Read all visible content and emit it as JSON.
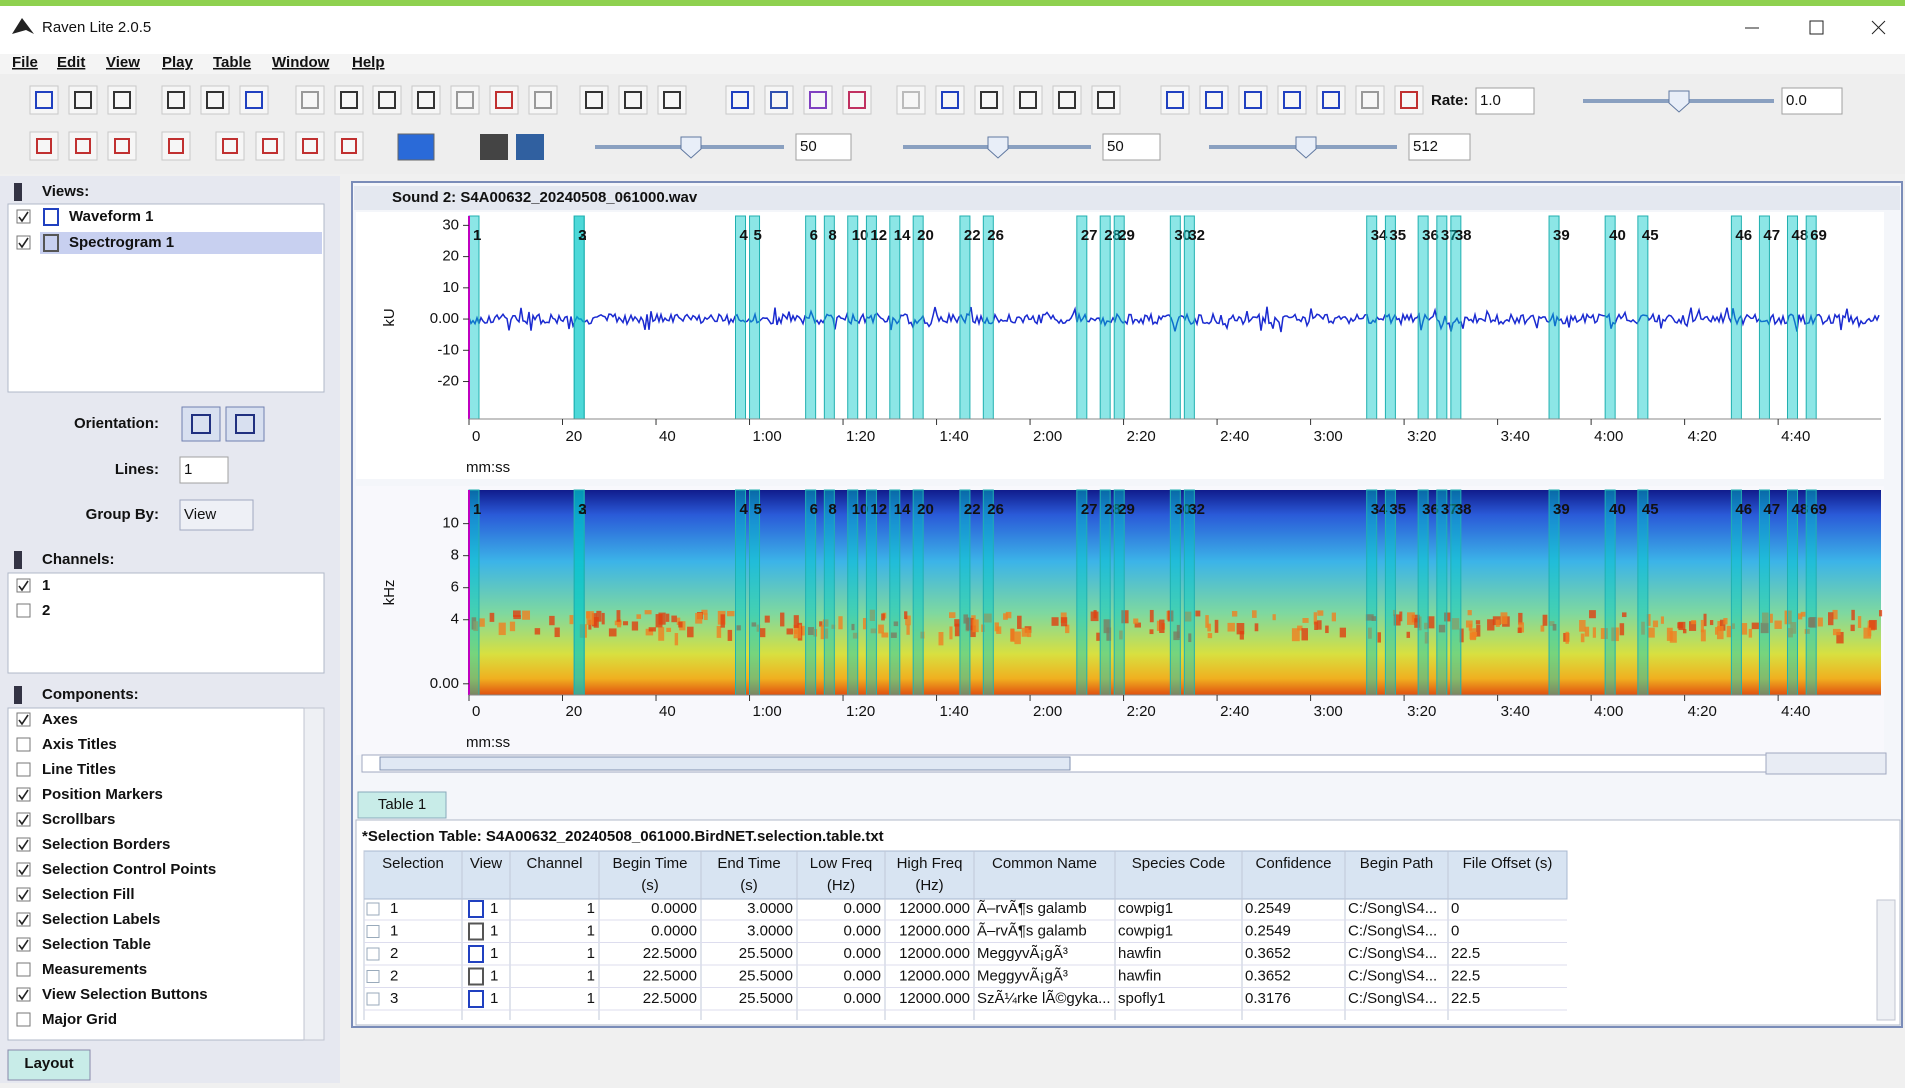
{
  "window": {
    "title": "Raven Lite 2.0.5"
  },
  "menu": [
    "File",
    "Edit",
    "View",
    "Play",
    "Table",
    "Window",
    "Help"
  ],
  "toolbar": {
    "rate_label": "Rate:",
    "rate": "1.0",
    "volume": "0.0",
    "brightness": "50",
    "contrast": "50",
    "window_size": "512"
  },
  "views": {
    "title": "Views:",
    "items": [
      {
        "label": "Waveform 1",
        "checked": true
      },
      {
        "label": "Spectrogram 1",
        "checked": true
      }
    ],
    "orientation_label": "Orientation:",
    "lines_label": "Lines:",
    "lines": "1",
    "group_by_label": "Group By:",
    "group_by": "View"
  },
  "channels": {
    "title": "Channels:",
    "items": [
      {
        "label": "1",
        "checked": true
      },
      {
        "label": "2",
        "checked": false
      }
    ]
  },
  "components": {
    "title": "Components:",
    "items": [
      {
        "label": "Axes",
        "checked": true
      },
      {
        "label": "Axis Titles",
        "checked": false
      },
      {
        "label": "Line Titles",
        "checked": false
      },
      {
        "label": "Position Markers",
        "checked": true
      },
      {
        "label": "Scrollbars",
        "checked": true
      },
      {
        "label": "Selection Borders",
        "checked": true
      },
      {
        "label": "Selection Control Points",
        "checked": true
      },
      {
        "label": "Selection Fill",
        "checked": true
      },
      {
        "label": "Selection Labels",
        "checked": true
      },
      {
        "label": "Selection Table",
        "checked": true
      },
      {
        "label": "Measurements",
        "checked": false
      },
      {
        "label": "View Selection Buttons",
        "checked": true
      },
      {
        "label": "Major Grid",
        "checked": false
      }
    ]
  },
  "layout_tab": "Layout",
  "sound": {
    "title": "Sound 2: S4A00632_20240508_061000.wav",
    "xlim": [
      0,
      302
    ],
    "xticks": [
      0,
      20,
      40,
      {
        "value": 60,
        "label": "1:00"
      },
      {
        "value": 80,
        "label": "1:20"
      },
      {
        "value": 100,
        "label": "1:40"
      },
      {
        "value": 120,
        "label": "2:00"
      },
      {
        "value": 140,
        "label": "2:20"
      },
      {
        "value": 160,
        "label": "2:40"
      },
      {
        "value": 180,
        "label": "3:00"
      },
      {
        "value": 200,
        "label": "3:20"
      },
      {
        "value": 220,
        "label": "3:40"
      },
      {
        "value": 240,
        "label": "4:00"
      },
      {
        "value": 260,
        "label": "4:20"
      },
      {
        "value": 280,
        "label": "4:40"
      }
    ],
    "waveform": {
      "y_label": "kU",
      "x_label": "mm:ss",
      "ylim": [
        -32,
        33
      ],
      "yticks": [
        30,
        20,
        10,
        {
          "value": 0,
          "label": "0.00"
        },
        -10,
        -20
      ]
    },
    "spectrogram": {
      "y_label": "kHz",
      "x_label": "mm:ss",
      "ylim": [
        -0.7,
        12.1
      ],
      "yticks": [
        10,
        8,
        6,
        4,
        {
          "value": 0,
          "label": "0.00"
        }
      ]
    },
    "selections": [
      {
        "label": "1",
        "begin": 0
      },
      {
        "label": "2",
        "begin": 22.5
      },
      {
        "label": "3",
        "begin": 22.5
      },
      {
        "label": "4",
        "begin": 57
      },
      {
        "label": "5",
        "begin": 60
      },
      {
        "label": "6",
        "begin": 72
      },
      {
        "label": "8",
        "begin": 76
      },
      {
        "label": "10",
        "begin": 81
      },
      {
        "label": "12",
        "begin": 85
      },
      {
        "label": "14",
        "begin": 90
      },
      {
        "label": "20",
        "begin": 95
      },
      {
        "label": "22",
        "begin": 105
      },
      {
        "label": "26",
        "begin": 110
      },
      {
        "label": "27",
        "begin": 130
      },
      {
        "label": "28",
        "begin": 135
      },
      {
        "label": "29",
        "begin": 138
      },
      {
        "label": "30",
        "begin": 150
      },
      {
        "label": "32",
        "begin": 153
      },
      {
        "label": "34",
        "begin": 192
      },
      {
        "label": "35",
        "begin": 196
      },
      {
        "label": "36",
        "begin": 203
      },
      {
        "label": "37",
        "begin": 207
      },
      {
        "label": "38",
        "begin": 210
      },
      {
        "label": "39",
        "begin": 231
      },
      {
        "label": "40",
        "begin": 243
      },
      {
        "label": "45",
        "begin": 250
      },
      {
        "label": "46",
        "begin": 270
      },
      {
        "label": "47",
        "begin": 276
      },
      {
        "label": "48",
        "begin": 282
      },
      {
        "label": "69",
        "begin": 286
      }
    ]
  },
  "table": {
    "tab": "Table 1",
    "title": "*Selection Table: S4A00632_20240508_061000.BirdNET.selection.table.txt",
    "columns": [
      [
        "Selection"
      ],
      [
        "View"
      ],
      [
        "Channel"
      ],
      [
        "Begin Time",
        "(s)"
      ],
      [
        "End Time",
        "(s)"
      ],
      [
        "Low Freq",
        "(Hz)"
      ],
      [
        "High Freq",
        "(Hz)"
      ],
      [
        "Common Name"
      ],
      [
        "Species Code"
      ],
      [
        "Confidence"
      ],
      [
        "Begin Path"
      ],
      [
        "File Offset (s)"
      ]
    ],
    "rows": [
      [
        "1",
        "1",
        "1",
        "0.0000",
        "3.0000",
        "0.000",
        "12000.000",
        "Ã–rvÃ¶s galamb",
        "cowpig1",
        "0.2549",
        "C:/Song\\S4...",
        "0"
      ],
      [
        "1",
        "1",
        "1",
        "0.0000",
        "3.0000",
        "0.000",
        "12000.000",
        "Ã–rvÃ¶s galamb",
        "cowpig1",
        "0.2549",
        "C:/Song\\S4...",
        "0"
      ],
      [
        "2",
        "1",
        "1",
        "22.5000",
        "25.5000",
        "0.000",
        "12000.000",
        "MeggyvÃ¡gÃ³",
        "hawfin",
        "0.3652",
        "C:/Song\\S4...",
        "22.5"
      ],
      [
        "2",
        "1",
        "1",
        "22.5000",
        "25.5000",
        "0.000",
        "12000.000",
        "MeggyvÃ¡gÃ³",
        "hawfin",
        "0.3652",
        "C:/Song\\S4...",
        "22.5"
      ],
      [
        "3",
        "1",
        "1",
        "22.5000",
        "25.5000",
        "0.000",
        "12000.000",
        "SzÃ¼rke lÃ©gyka...",
        "spofly1",
        "0.3176",
        "C:/Song\\S4...",
        "22.5"
      ]
    ]
  }
}
